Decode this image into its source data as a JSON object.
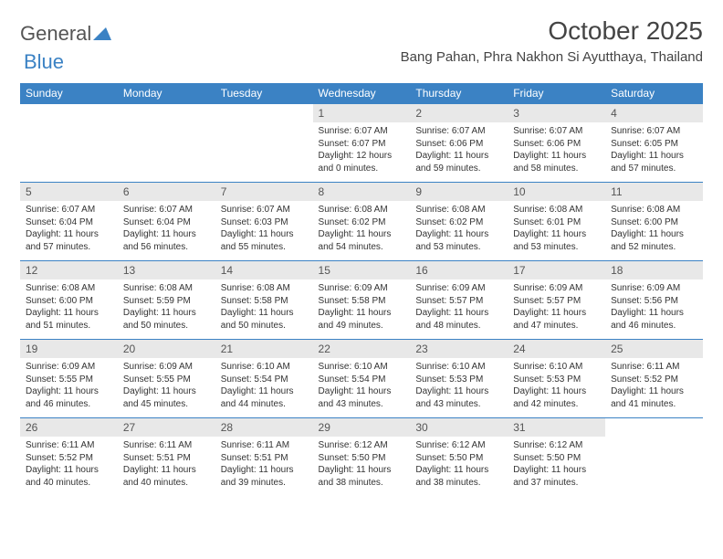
{
  "brand": {
    "text1": "General",
    "text2": "Blue",
    "color": "#3b82c4"
  },
  "title": "October 2025",
  "location": "Bang Pahan, Phra Nakhon Si Ayutthaya, Thailand",
  "colors": {
    "header_bg": "#3b82c4",
    "header_text": "#ffffff",
    "daynum_bg": "#e8e8e8",
    "row_border": "#3b82c4",
    "body_text": "#333333"
  },
  "day_headers": [
    "Sunday",
    "Monday",
    "Tuesday",
    "Wednesday",
    "Thursday",
    "Friday",
    "Saturday"
  ],
  "weeks": [
    [
      {
        "empty": true
      },
      {
        "empty": true
      },
      {
        "empty": true
      },
      {
        "num": "1",
        "sunrise": "Sunrise: 6:07 AM",
        "sunset": "Sunset: 6:07 PM",
        "daylight1": "Daylight: 12 hours",
        "daylight2": "and 0 minutes."
      },
      {
        "num": "2",
        "sunrise": "Sunrise: 6:07 AM",
        "sunset": "Sunset: 6:06 PM",
        "daylight1": "Daylight: 11 hours",
        "daylight2": "and 59 minutes."
      },
      {
        "num": "3",
        "sunrise": "Sunrise: 6:07 AM",
        "sunset": "Sunset: 6:06 PM",
        "daylight1": "Daylight: 11 hours",
        "daylight2": "and 58 minutes."
      },
      {
        "num": "4",
        "sunrise": "Sunrise: 6:07 AM",
        "sunset": "Sunset: 6:05 PM",
        "daylight1": "Daylight: 11 hours",
        "daylight2": "and 57 minutes."
      }
    ],
    [
      {
        "num": "5",
        "sunrise": "Sunrise: 6:07 AM",
        "sunset": "Sunset: 6:04 PM",
        "daylight1": "Daylight: 11 hours",
        "daylight2": "and 57 minutes."
      },
      {
        "num": "6",
        "sunrise": "Sunrise: 6:07 AM",
        "sunset": "Sunset: 6:04 PM",
        "daylight1": "Daylight: 11 hours",
        "daylight2": "and 56 minutes."
      },
      {
        "num": "7",
        "sunrise": "Sunrise: 6:07 AM",
        "sunset": "Sunset: 6:03 PM",
        "daylight1": "Daylight: 11 hours",
        "daylight2": "and 55 minutes."
      },
      {
        "num": "8",
        "sunrise": "Sunrise: 6:08 AM",
        "sunset": "Sunset: 6:02 PM",
        "daylight1": "Daylight: 11 hours",
        "daylight2": "and 54 minutes."
      },
      {
        "num": "9",
        "sunrise": "Sunrise: 6:08 AM",
        "sunset": "Sunset: 6:02 PM",
        "daylight1": "Daylight: 11 hours",
        "daylight2": "and 53 minutes."
      },
      {
        "num": "10",
        "sunrise": "Sunrise: 6:08 AM",
        "sunset": "Sunset: 6:01 PM",
        "daylight1": "Daylight: 11 hours",
        "daylight2": "and 53 minutes."
      },
      {
        "num": "11",
        "sunrise": "Sunrise: 6:08 AM",
        "sunset": "Sunset: 6:00 PM",
        "daylight1": "Daylight: 11 hours",
        "daylight2": "and 52 minutes."
      }
    ],
    [
      {
        "num": "12",
        "sunrise": "Sunrise: 6:08 AM",
        "sunset": "Sunset: 6:00 PM",
        "daylight1": "Daylight: 11 hours",
        "daylight2": "and 51 minutes."
      },
      {
        "num": "13",
        "sunrise": "Sunrise: 6:08 AM",
        "sunset": "Sunset: 5:59 PM",
        "daylight1": "Daylight: 11 hours",
        "daylight2": "and 50 minutes."
      },
      {
        "num": "14",
        "sunrise": "Sunrise: 6:08 AM",
        "sunset": "Sunset: 5:58 PM",
        "daylight1": "Daylight: 11 hours",
        "daylight2": "and 50 minutes."
      },
      {
        "num": "15",
        "sunrise": "Sunrise: 6:09 AM",
        "sunset": "Sunset: 5:58 PM",
        "daylight1": "Daylight: 11 hours",
        "daylight2": "and 49 minutes."
      },
      {
        "num": "16",
        "sunrise": "Sunrise: 6:09 AM",
        "sunset": "Sunset: 5:57 PM",
        "daylight1": "Daylight: 11 hours",
        "daylight2": "and 48 minutes."
      },
      {
        "num": "17",
        "sunrise": "Sunrise: 6:09 AM",
        "sunset": "Sunset: 5:57 PM",
        "daylight1": "Daylight: 11 hours",
        "daylight2": "and 47 minutes."
      },
      {
        "num": "18",
        "sunrise": "Sunrise: 6:09 AM",
        "sunset": "Sunset: 5:56 PM",
        "daylight1": "Daylight: 11 hours",
        "daylight2": "and 46 minutes."
      }
    ],
    [
      {
        "num": "19",
        "sunrise": "Sunrise: 6:09 AM",
        "sunset": "Sunset: 5:55 PM",
        "daylight1": "Daylight: 11 hours",
        "daylight2": "and 46 minutes."
      },
      {
        "num": "20",
        "sunrise": "Sunrise: 6:09 AM",
        "sunset": "Sunset: 5:55 PM",
        "daylight1": "Daylight: 11 hours",
        "daylight2": "and 45 minutes."
      },
      {
        "num": "21",
        "sunrise": "Sunrise: 6:10 AM",
        "sunset": "Sunset: 5:54 PM",
        "daylight1": "Daylight: 11 hours",
        "daylight2": "and 44 minutes."
      },
      {
        "num": "22",
        "sunrise": "Sunrise: 6:10 AM",
        "sunset": "Sunset: 5:54 PM",
        "daylight1": "Daylight: 11 hours",
        "daylight2": "and 43 minutes."
      },
      {
        "num": "23",
        "sunrise": "Sunrise: 6:10 AM",
        "sunset": "Sunset: 5:53 PM",
        "daylight1": "Daylight: 11 hours",
        "daylight2": "and 43 minutes."
      },
      {
        "num": "24",
        "sunrise": "Sunrise: 6:10 AM",
        "sunset": "Sunset: 5:53 PM",
        "daylight1": "Daylight: 11 hours",
        "daylight2": "and 42 minutes."
      },
      {
        "num": "25",
        "sunrise": "Sunrise: 6:11 AM",
        "sunset": "Sunset: 5:52 PM",
        "daylight1": "Daylight: 11 hours",
        "daylight2": "and 41 minutes."
      }
    ],
    [
      {
        "num": "26",
        "sunrise": "Sunrise: 6:11 AM",
        "sunset": "Sunset: 5:52 PM",
        "daylight1": "Daylight: 11 hours",
        "daylight2": "and 40 minutes."
      },
      {
        "num": "27",
        "sunrise": "Sunrise: 6:11 AM",
        "sunset": "Sunset: 5:51 PM",
        "daylight1": "Daylight: 11 hours",
        "daylight2": "and 40 minutes."
      },
      {
        "num": "28",
        "sunrise": "Sunrise: 6:11 AM",
        "sunset": "Sunset: 5:51 PM",
        "daylight1": "Daylight: 11 hours",
        "daylight2": "and 39 minutes."
      },
      {
        "num": "29",
        "sunrise": "Sunrise: 6:12 AM",
        "sunset": "Sunset: 5:50 PM",
        "daylight1": "Daylight: 11 hours",
        "daylight2": "and 38 minutes."
      },
      {
        "num": "30",
        "sunrise": "Sunrise: 6:12 AM",
        "sunset": "Sunset: 5:50 PM",
        "daylight1": "Daylight: 11 hours",
        "daylight2": "and 38 minutes."
      },
      {
        "num": "31",
        "sunrise": "Sunrise: 6:12 AM",
        "sunset": "Sunset: 5:50 PM",
        "daylight1": "Daylight: 11 hours",
        "daylight2": "and 37 minutes."
      },
      {
        "empty": true
      }
    ]
  ]
}
